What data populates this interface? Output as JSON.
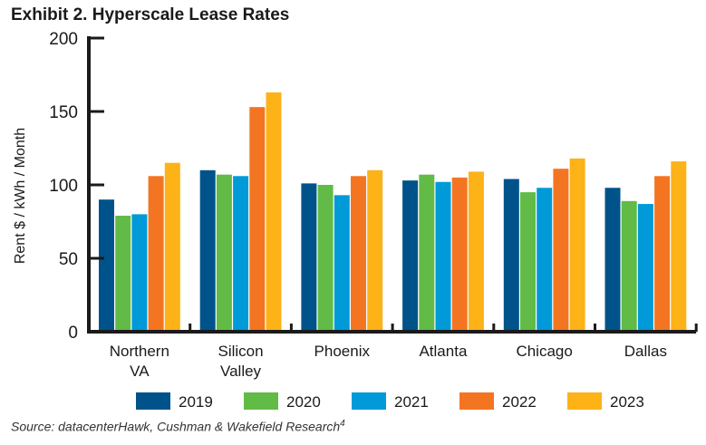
{
  "title": "Exhibit 2. Hyperscale Lease Rates",
  "source": "Source: datacenterHawk, Cushman & Wakefield Research",
  "source_footnote": "4",
  "chart_data": {
    "type": "bar",
    "title": "Exhibit 2. Hyperscale Lease Rates",
    "xlabel": "",
    "ylabel": "Rent $ / kWh / Month",
    "ylim": [
      0,
      200
    ],
    "yticks": [
      0,
      50,
      100,
      150,
      200
    ],
    "grid": false,
    "legend": "bottom",
    "categories": [
      [
        "Northern",
        "VA"
      ],
      [
        "Silicon",
        "Valley"
      ],
      [
        "Phoenix"
      ],
      [
        "Atlanta"
      ],
      [
        "Chicago"
      ],
      [
        "Dallas"
      ]
    ],
    "series": [
      {
        "name": "2019",
        "color": "#00538a",
        "values": [
          90,
          110,
          101,
          103,
          104,
          98
        ]
      },
      {
        "name": "2020",
        "color": "#61bb46",
        "values": [
          79,
          107,
          100,
          107,
          95,
          89
        ]
      },
      {
        "name": "2021",
        "color": "#009ad8",
        "values": [
          80,
          106,
          93,
          102,
          98,
          87
        ]
      },
      {
        "name": "2022",
        "color": "#f47521",
        "values": [
          106,
          153,
          106,
          105,
          111,
          106
        ]
      },
      {
        "name": "2023",
        "color": "#fdb218",
        "values": [
          115,
          163,
          110,
          109,
          118,
          116
        ]
      }
    ]
  }
}
